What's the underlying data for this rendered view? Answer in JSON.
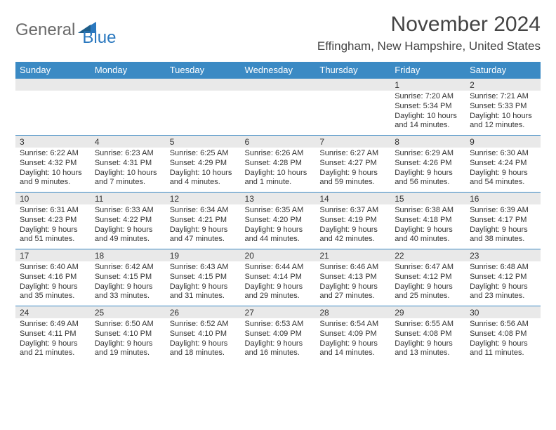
{
  "brand": {
    "part1": "General",
    "part2": "Blue",
    "icon_color": "#2a78bf"
  },
  "header": {
    "title": "November 2024",
    "location": "Effingham, New Hampshire, United States"
  },
  "colors": {
    "header_bg": "#3b8ac4",
    "header_fg": "#ffffff",
    "daynum_bg": "#e9e9e9",
    "rule": "#3b8ac4",
    "text": "#333333"
  },
  "typography": {
    "title_fontsize": 30,
    "location_fontsize": 17,
    "dow_fontsize": 13,
    "daynum_fontsize": 12,
    "body_fontsize": 11
  },
  "days_of_week": [
    "Sunday",
    "Monday",
    "Tuesday",
    "Wednesday",
    "Thursday",
    "Friday",
    "Saturday"
  ],
  "weeks": [
    [
      {
        "n": "",
        "sunrise": "",
        "sunset": "",
        "daylight": ""
      },
      {
        "n": "",
        "sunrise": "",
        "sunset": "",
        "daylight": ""
      },
      {
        "n": "",
        "sunrise": "",
        "sunset": "",
        "daylight": ""
      },
      {
        "n": "",
        "sunrise": "",
        "sunset": "",
        "daylight": ""
      },
      {
        "n": "",
        "sunrise": "",
        "sunset": "",
        "daylight": ""
      },
      {
        "n": "1",
        "sunrise": "Sunrise: 7:20 AM",
        "sunset": "Sunset: 5:34 PM",
        "daylight": "Daylight: 10 hours and 14 minutes."
      },
      {
        "n": "2",
        "sunrise": "Sunrise: 7:21 AM",
        "sunset": "Sunset: 5:33 PM",
        "daylight": "Daylight: 10 hours and 12 minutes."
      }
    ],
    [
      {
        "n": "3",
        "sunrise": "Sunrise: 6:22 AM",
        "sunset": "Sunset: 4:32 PM",
        "daylight": "Daylight: 10 hours and 9 minutes."
      },
      {
        "n": "4",
        "sunrise": "Sunrise: 6:23 AM",
        "sunset": "Sunset: 4:31 PM",
        "daylight": "Daylight: 10 hours and 7 minutes."
      },
      {
        "n": "5",
        "sunrise": "Sunrise: 6:25 AM",
        "sunset": "Sunset: 4:29 PM",
        "daylight": "Daylight: 10 hours and 4 minutes."
      },
      {
        "n": "6",
        "sunrise": "Sunrise: 6:26 AM",
        "sunset": "Sunset: 4:28 PM",
        "daylight": "Daylight: 10 hours and 1 minute."
      },
      {
        "n": "7",
        "sunrise": "Sunrise: 6:27 AM",
        "sunset": "Sunset: 4:27 PM",
        "daylight": "Daylight: 9 hours and 59 minutes."
      },
      {
        "n": "8",
        "sunrise": "Sunrise: 6:29 AM",
        "sunset": "Sunset: 4:26 PM",
        "daylight": "Daylight: 9 hours and 56 minutes."
      },
      {
        "n": "9",
        "sunrise": "Sunrise: 6:30 AM",
        "sunset": "Sunset: 4:24 PM",
        "daylight": "Daylight: 9 hours and 54 minutes."
      }
    ],
    [
      {
        "n": "10",
        "sunrise": "Sunrise: 6:31 AM",
        "sunset": "Sunset: 4:23 PM",
        "daylight": "Daylight: 9 hours and 51 minutes."
      },
      {
        "n": "11",
        "sunrise": "Sunrise: 6:33 AM",
        "sunset": "Sunset: 4:22 PM",
        "daylight": "Daylight: 9 hours and 49 minutes."
      },
      {
        "n": "12",
        "sunrise": "Sunrise: 6:34 AM",
        "sunset": "Sunset: 4:21 PM",
        "daylight": "Daylight: 9 hours and 47 minutes."
      },
      {
        "n": "13",
        "sunrise": "Sunrise: 6:35 AM",
        "sunset": "Sunset: 4:20 PM",
        "daylight": "Daylight: 9 hours and 44 minutes."
      },
      {
        "n": "14",
        "sunrise": "Sunrise: 6:37 AM",
        "sunset": "Sunset: 4:19 PM",
        "daylight": "Daylight: 9 hours and 42 minutes."
      },
      {
        "n": "15",
        "sunrise": "Sunrise: 6:38 AM",
        "sunset": "Sunset: 4:18 PM",
        "daylight": "Daylight: 9 hours and 40 minutes."
      },
      {
        "n": "16",
        "sunrise": "Sunrise: 6:39 AM",
        "sunset": "Sunset: 4:17 PM",
        "daylight": "Daylight: 9 hours and 38 minutes."
      }
    ],
    [
      {
        "n": "17",
        "sunrise": "Sunrise: 6:40 AM",
        "sunset": "Sunset: 4:16 PM",
        "daylight": "Daylight: 9 hours and 35 minutes."
      },
      {
        "n": "18",
        "sunrise": "Sunrise: 6:42 AM",
        "sunset": "Sunset: 4:15 PM",
        "daylight": "Daylight: 9 hours and 33 minutes."
      },
      {
        "n": "19",
        "sunrise": "Sunrise: 6:43 AM",
        "sunset": "Sunset: 4:15 PM",
        "daylight": "Daylight: 9 hours and 31 minutes."
      },
      {
        "n": "20",
        "sunrise": "Sunrise: 6:44 AM",
        "sunset": "Sunset: 4:14 PM",
        "daylight": "Daylight: 9 hours and 29 minutes."
      },
      {
        "n": "21",
        "sunrise": "Sunrise: 6:46 AM",
        "sunset": "Sunset: 4:13 PM",
        "daylight": "Daylight: 9 hours and 27 minutes."
      },
      {
        "n": "22",
        "sunrise": "Sunrise: 6:47 AM",
        "sunset": "Sunset: 4:12 PM",
        "daylight": "Daylight: 9 hours and 25 minutes."
      },
      {
        "n": "23",
        "sunrise": "Sunrise: 6:48 AM",
        "sunset": "Sunset: 4:12 PM",
        "daylight": "Daylight: 9 hours and 23 minutes."
      }
    ],
    [
      {
        "n": "24",
        "sunrise": "Sunrise: 6:49 AM",
        "sunset": "Sunset: 4:11 PM",
        "daylight": "Daylight: 9 hours and 21 minutes."
      },
      {
        "n": "25",
        "sunrise": "Sunrise: 6:50 AM",
        "sunset": "Sunset: 4:10 PM",
        "daylight": "Daylight: 9 hours and 19 minutes."
      },
      {
        "n": "26",
        "sunrise": "Sunrise: 6:52 AM",
        "sunset": "Sunset: 4:10 PM",
        "daylight": "Daylight: 9 hours and 18 minutes."
      },
      {
        "n": "27",
        "sunrise": "Sunrise: 6:53 AM",
        "sunset": "Sunset: 4:09 PM",
        "daylight": "Daylight: 9 hours and 16 minutes."
      },
      {
        "n": "28",
        "sunrise": "Sunrise: 6:54 AM",
        "sunset": "Sunset: 4:09 PM",
        "daylight": "Daylight: 9 hours and 14 minutes."
      },
      {
        "n": "29",
        "sunrise": "Sunrise: 6:55 AM",
        "sunset": "Sunset: 4:08 PM",
        "daylight": "Daylight: 9 hours and 13 minutes."
      },
      {
        "n": "30",
        "sunrise": "Sunrise: 6:56 AM",
        "sunset": "Sunset: 4:08 PM",
        "daylight": "Daylight: 9 hours and 11 minutes."
      }
    ]
  ]
}
